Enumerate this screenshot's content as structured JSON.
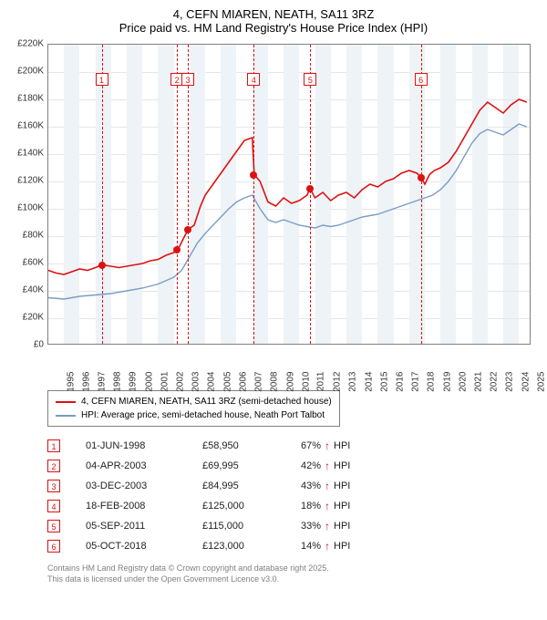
{
  "title": {
    "line1": "4, CEFN MIAREN, NEATH, SA11 3RZ",
    "line2": "Price paid vs. HM Land Registry's House Price Index (HPI)"
  },
  "chart": {
    "type": "line",
    "background_color": "#ffffff",
    "band_color": "#eef3f7",
    "grid_color": "#e6e6e6",
    "axis_color": "#808080",
    "x_years": [
      "1995",
      "1996",
      "1997",
      "1998",
      "1999",
      "2000",
      "2001",
      "2002",
      "2003",
      "2004",
      "2005",
      "2006",
      "2007",
      "2008",
      "2009",
      "2010",
      "2011",
      "2012",
      "2013",
      "2014",
      "2015",
      "2016",
      "2017",
      "2018",
      "2019",
      "2020",
      "2021",
      "2022",
      "2023",
      "2024",
      "2025"
    ],
    "x_min": 1995,
    "x_max": 2025.8,
    "y_ticks": [
      0,
      20,
      40,
      60,
      80,
      100,
      120,
      140,
      160,
      180,
      200,
      220
    ],
    "y_tick_labels": [
      "£0",
      "£20K",
      "£40K",
      "£60K",
      "£80K",
      "£100K",
      "£120K",
      "£140K",
      "£160K",
      "£180K",
      "£200K",
      "£220K"
    ],
    "y_min": 0,
    "y_max": 220,
    "label_fontsize": 10,
    "series": {
      "property": {
        "color": "#d11",
        "width": 1.6,
        "label": "4, CEFN MIAREN, NEATH, SA11 3RZ (semi-detached house)",
        "points": [
          [
            1995,
            55
          ],
          [
            1995.5,
            53
          ],
          [
            1996,
            52
          ],
          [
            1996.5,
            54
          ],
          [
            1997,
            56
          ],
          [
            1997.5,
            55
          ],
          [
            1998,
            57
          ],
          [
            1998.42,
            58.95
          ],
          [
            1999,
            58
          ],
          [
            1999.5,
            57
          ],
          [
            2000,
            58
          ],
          [
            2000.5,
            59
          ],
          [
            2001,
            60
          ],
          [
            2001.5,
            62
          ],
          [
            2002,
            63
          ],
          [
            2002.5,
            66
          ],
          [
            2003,
            68
          ],
          [
            2003.26,
            69.995
          ],
          [
            2003.6,
            78
          ],
          [
            2003.92,
            84.995
          ],
          [
            2004.3,
            88
          ],
          [
            2004.7,
            102
          ],
          [
            2005,
            110
          ],
          [
            2005.5,
            118
          ],
          [
            2006,
            126
          ],
          [
            2006.5,
            134
          ],
          [
            2007,
            142
          ],
          [
            2007.5,
            150
          ],
          [
            2008,
            152
          ],
          [
            2008.13,
            125
          ],
          [
            2008.5,
            120
          ],
          [
            2009,
            105
          ],
          [
            2009.5,
            102
          ],
          [
            2010,
            108
          ],
          [
            2010.5,
            104
          ],
          [
            2011,
            106
          ],
          [
            2011.5,
            110
          ],
          [
            2011.68,
            115
          ],
          [
            2012,
            108
          ],
          [
            2012.5,
            112
          ],
          [
            2013,
            106
          ],
          [
            2013.5,
            110
          ],
          [
            2014,
            112
          ],
          [
            2014.5,
            108
          ],
          [
            2015,
            114
          ],
          [
            2015.5,
            118
          ],
          [
            2016,
            116
          ],
          [
            2016.5,
            120
          ],
          [
            2017,
            122
          ],
          [
            2017.5,
            126
          ],
          [
            2018,
            128
          ],
          [
            2018.5,
            126
          ],
          [
            2018.76,
            123
          ],
          [
            2019,
            118
          ],
          [
            2019.3,
            125
          ],
          [
            2019.6,
            128
          ],
          [
            2020,
            130
          ],
          [
            2020.5,
            134
          ],
          [
            2021,
            142
          ],
          [
            2021.5,
            152
          ],
          [
            2022,
            162
          ],
          [
            2022.5,
            172
          ],
          [
            2023,
            178
          ],
          [
            2023.5,
            174
          ],
          [
            2024,
            170
          ],
          [
            2024.5,
            176
          ],
          [
            2025,
            180
          ],
          [
            2025.5,
            178
          ]
        ]
      },
      "hpi": {
        "color": "#7a9cc6",
        "width": 1.4,
        "label": "HPI: Average price, semi-detached house, Neath Port Talbot",
        "points": [
          [
            1995,
            35
          ],
          [
            1996,
            34
          ],
          [
            1997,
            36
          ],
          [
            1998,
            37
          ],
          [
            1999,
            38
          ],
          [
            2000,
            40
          ],
          [
            2001,
            42
          ],
          [
            2002,
            45
          ],
          [
            2003,
            50
          ],
          [
            2003.5,
            55
          ],
          [
            2004,
            65
          ],
          [
            2004.5,
            75
          ],
          [
            2005,
            82
          ],
          [
            2005.5,
            88
          ],
          [
            2006,
            94
          ],
          [
            2006.5,
            100
          ],
          [
            2007,
            105
          ],
          [
            2007.5,
            108
          ],
          [
            2008,
            110
          ],
          [
            2008.5,
            100
          ],
          [
            2009,
            92
          ],
          [
            2009.5,
            90
          ],
          [
            2010,
            92
          ],
          [
            2010.5,
            90
          ],
          [
            2011,
            88
          ],
          [
            2011.5,
            87
          ],
          [
            2012,
            86
          ],
          [
            2012.5,
            88
          ],
          [
            2013,
            87
          ],
          [
            2013.5,
            88
          ],
          [
            2014,
            90
          ],
          [
            2014.5,
            92
          ],
          [
            2015,
            94
          ],
          [
            2015.5,
            95
          ],
          [
            2016,
            96
          ],
          [
            2016.5,
            98
          ],
          [
            2017,
            100
          ],
          [
            2017.5,
            102
          ],
          [
            2018,
            104
          ],
          [
            2018.5,
            106
          ],
          [
            2019,
            108
          ],
          [
            2019.5,
            110
          ],
          [
            2020,
            114
          ],
          [
            2020.5,
            120
          ],
          [
            2021,
            128
          ],
          [
            2021.5,
            138
          ],
          [
            2022,
            148
          ],
          [
            2022.5,
            155
          ],
          [
            2023,
            158
          ],
          [
            2023.5,
            156
          ],
          [
            2024,
            154
          ],
          [
            2024.5,
            158
          ],
          [
            2025,
            162
          ],
          [
            2025.5,
            160
          ]
        ]
      }
    },
    "sale_markers": [
      {
        "n": "1",
        "x": 1998.4,
        "y": 58.95,
        "box_y": 195
      },
      {
        "n": "2",
        "x": 2003.2,
        "y": 69.995,
        "box_y": 195
      },
      {
        "n": "3",
        "x": 2003.9,
        "y": 84.995,
        "box_y": 195
      },
      {
        "n": "4",
        "x": 2008.1,
        "y": 125,
        "box_y": 195
      },
      {
        "n": "5",
        "x": 2011.7,
        "y": 115,
        "box_y": 195
      },
      {
        "n": "6",
        "x": 2018.75,
        "y": 123,
        "box_y": 195
      }
    ]
  },
  "legend": {
    "items": [
      {
        "color": "#d11",
        "label": "4, CEFN MIAREN, NEATH, SA11 3RZ (semi-detached house)"
      },
      {
        "color": "#7a9cc6",
        "label": "HPI: Average price, semi-detached house, Neath Port Talbot"
      }
    ]
  },
  "sales": [
    {
      "n": "1",
      "date": "01-JUN-1998",
      "price": "£58,950",
      "pct": "67%",
      "suffix": "↑ HPI"
    },
    {
      "n": "2",
      "date": "04-APR-2003",
      "price": "£69,995",
      "pct": "42%",
      "suffix": "↑ HPI"
    },
    {
      "n": "3",
      "date": "03-DEC-2003",
      "price": "£84,995",
      "pct": "43%",
      "suffix": "↑ HPI"
    },
    {
      "n": "4",
      "date": "18-FEB-2008",
      "price": "£125,000",
      "pct": "18%",
      "suffix": "↑ HPI"
    },
    {
      "n": "5",
      "date": "05-SEP-2011",
      "price": "£115,000",
      "pct": "33%",
      "suffix": "↑ HPI"
    },
    {
      "n": "6",
      "date": "05-OCT-2018",
      "price": "£123,000",
      "pct": "14%",
      "suffix": "↑ HPI"
    }
  ],
  "footer": {
    "line1": "Contains HM Land Registry data © Crown copyright and database right 2025.",
    "line2": "This data is licensed under the Open Government Licence v3.0."
  }
}
